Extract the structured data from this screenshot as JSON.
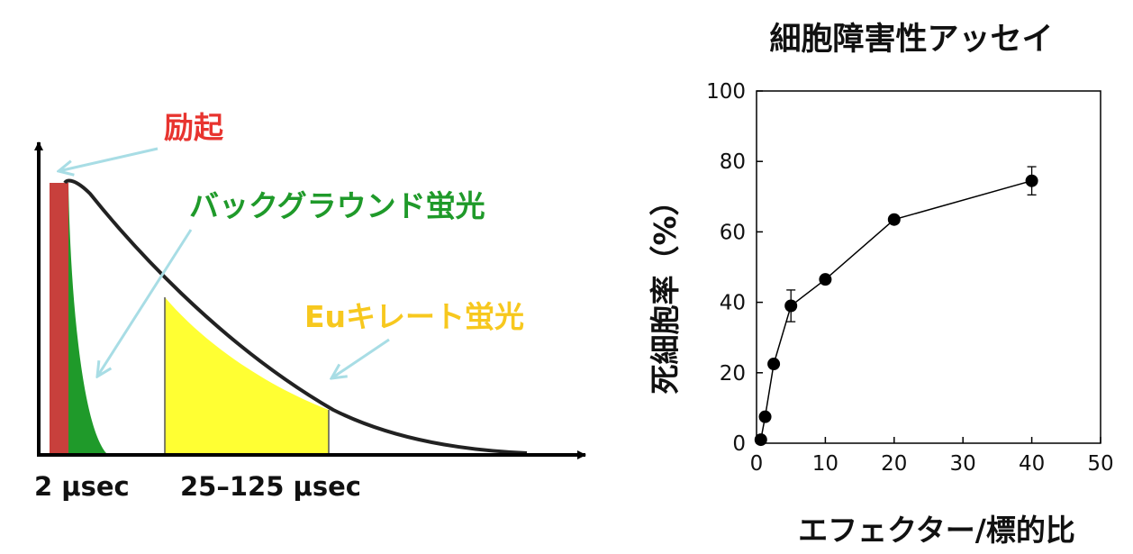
{
  "diagram": {
    "labels": {
      "excitation": "励起",
      "background": "バックグラウンド蛍光",
      "eu_chelate": "Euキレート蛍光",
      "pulse_time": "2 μsec",
      "window_time": "25–125 μsec"
    },
    "colors": {
      "excitation": "#c8403c",
      "background": "#1f9a2a",
      "eu_chelate": "#f7c81e",
      "eu_fill": "#ffff33",
      "arrow": "#a8dde5",
      "curve": "#222222"
    }
  },
  "chart_data": {
    "type": "line",
    "title": "細胞障害性アッセイ",
    "xlabel": "エフェクター/標的比",
    "ylabel": "死細胞率（%）",
    "xlim": [
      0,
      50
    ],
    "ylim": [
      0,
      100
    ],
    "xticks": [
      "0",
      "10",
      "20",
      "30",
      "40",
      "50"
    ],
    "yticks": [
      "0",
      "20",
      "40",
      "60",
      "80",
      "100"
    ],
    "x": [
      0.625,
      1.25,
      2.5,
      5,
      10,
      20,
      40
    ],
    "y": [
      1,
      7.5,
      22.5,
      39,
      46.5,
      63.5,
      74.5
    ],
    "error": [
      0,
      0,
      0,
      4.5,
      0,
      0,
      4
    ],
    "grid": false
  }
}
